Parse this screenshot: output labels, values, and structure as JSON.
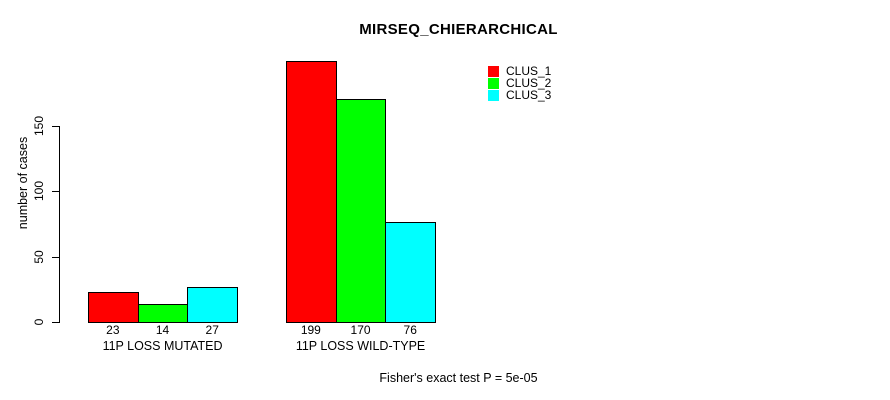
{
  "chart_data": {
    "type": "bar",
    "title": "MIRSEQ_CHIERARCHICAL",
    "ylabel": "number of cases",
    "xlabel": "",
    "categories": [
      "11P LOSS MUTATED",
      "11P LOSS WILD-TYPE"
    ],
    "series": [
      {
        "name": "CLUS_1",
        "color": "#ff0000",
        "values": [
          23,
          199
        ]
      },
      {
        "name": "CLUS_2",
        "color": "#00ff00",
        "values": [
          14,
          170
        ]
      },
      {
        "name": "CLUS_3",
        "color": "#00ffff",
        "values": [
          27,
          76
        ]
      }
    ],
    "yticks": [
      0,
      50,
      100,
      150
    ],
    "ylim": [
      0,
      205
    ],
    "grid": false,
    "bar_value_labels_shown": true,
    "legend_position": "top-right-inside",
    "bar_border_color": "#000000",
    "axis_color": "#000000",
    "background_color": "#ffffff",
    "annotation": "Fisher's exact test P = 5e-05"
  }
}
